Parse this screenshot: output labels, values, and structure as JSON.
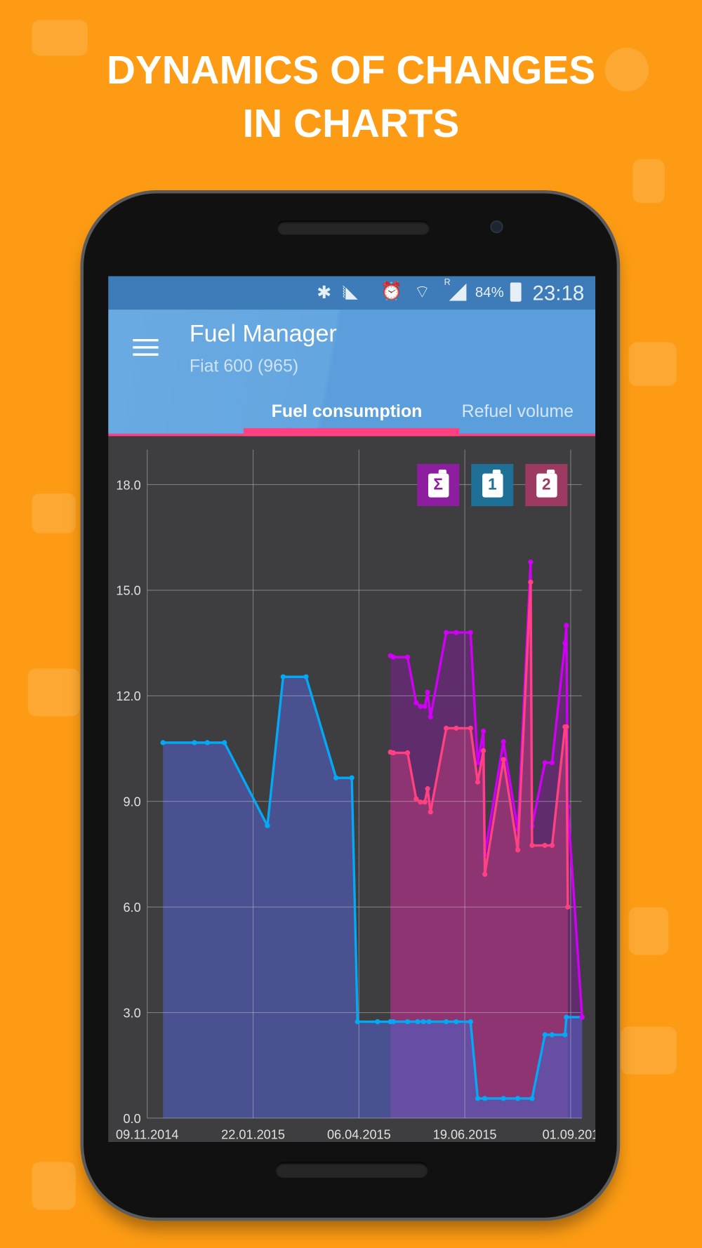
{
  "headline": {
    "line1": "DYNAMICS OF CHANGES",
    "line2": "IN CHARTS"
  },
  "status_bar": {
    "icons": [
      "bluetooth-icon",
      "vibrate-icon",
      "alarm-icon",
      "wifi-icon",
      "roaming-signal-icon",
      "battery-icon"
    ],
    "roaming": "R",
    "battery": "84%",
    "battery_level": 0.84,
    "time": "23:18"
  },
  "app_bar": {
    "title": "Fuel Manager",
    "subtitle": "Fiat 600 (965)",
    "menu_icon": "hamburger-menu-icon"
  },
  "tabs": [
    {
      "label": "Fuel consumption",
      "active": true
    },
    {
      "label": "Refuel volume",
      "active": false
    }
  ],
  "colors": {
    "background": "#fd9c14",
    "status_bar": "#3d7cb8",
    "app_bar": "#5b9edc",
    "accent": "#ff4081",
    "chart_bg": "#3e3d40"
  },
  "legend": [
    {
      "glyph": "Σ",
      "icon": "fuel-can-sum-icon",
      "color": "#8e1ea0"
    },
    {
      "glyph": "1",
      "icon": "fuel-can-1-icon",
      "color": "#1e7096"
    },
    {
      "glyph": "2",
      "icon": "fuel-can-2-icon",
      "color": "#9c3a62"
    }
  ],
  "chart_data": {
    "type": "area",
    "ylim": [
      0,
      18
    ],
    "yticks": [
      "0.0",
      "3.0",
      "6.0",
      "9.0",
      "12.0",
      "15.0",
      "18.0"
    ],
    "xticks": [
      "09.11.2014",
      "22.01.2015",
      "06.04.2015",
      "19.06.2015",
      "01.09.201"
    ],
    "grid": true,
    "series": [
      {
        "key": "1",
        "line_color": "#03a9f4",
        "fill_color": "rgba(81,92,187,0.65)",
        "points": [
          [
            "20.11.2014",
            10.67
          ],
          [
            "12.12.2014",
            10.67
          ],
          [
            "21.12.2014",
            10.67
          ],
          [
            "02.01.2015",
            10.67
          ],
          [
            "01.02.2015",
            8.31
          ],
          [
            "12.02.2015",
            12.54
          ],
          [
            "28.02.2015",
            12.54
          ],
          [
            "21.03.2015",
            9.67
          ],
          [
            "01.04.2015",
            9.67
          ],
          [
            "05.04.2015",
            2.74
          ],
          [
            "19.04.2015",
            2.74
          ],
          [
            "28.04.2015",
            2.74
          ],
          [
            "30.04.2015",
            2.74
          ],
          [
            "10.05.2015",
            2.74
          ],
          [
            "17.05.2015",
            2.74
          ],
          [
            "21.05.2015",
            2.74
          ],
          [
            "25.05.2015",
            2.74
          ],
          [
            "06.06.2015",
            2.74
          ],
          [
            "13.06.2015",
            2.74
          ],
          [
            "23.06.2015",
            2.74
          ],
          [
            "28.06.2015",
            0.56
          ],
          [
            "03.07.2015",
            0.56
          ],
          [
            "16.07.2015",
            0.56
          ],
          [
            "26.07.2015",
            0.56
          ],
          [
            "05.08.2015",
            0.56
          ],
          [
            "14.08.2015",
            2.37
          ],
          [
            "19.08.2015",
            2.37
          ],
          [
            "28.08.2015",
            2.37
          ],
          [
            "29.08.2015",
            2.87
          ],
          [
            "09.09.2015",
            2.87
          ]
        ]
      },
      {
        "key": "Σ",
        "line_color": "#d000f5",
        "fill_color": "#5f2c6c",
        "points": [
          [
            "28.04.2015",
            13.14
          ],
          [
            "30.04.2015",
            13.1
          ],
          [
            "10.05.2015",
            13.1
          ],
          [
            "16.05.2015",
            11.8
          ],
          [
            "19.05.2015",
            11.7
          ],
          [
            "22.05.2015",
            11.7
          ],
          [
            "24.05.2015",
            12.1
          ],
          [
            "26.05.2015",
            11.4
          ],
          [
            "06.06.2015",
            13.8
          ],
          [
            "13.06.2015",
            13.8
          ],
          [
            "23.06.2015",
            13.8
          ],
          [
            "28.06.2015",
            10.1
          ],
          [
            "02.07.2015",
            11.0
          ],
          [
            "03.07.2015",
            7.5
          ],
          [
            "16.07.2015",
            10.7
          ],
          [
            "26.07.2015",
            8.2
          ],
          [
            "04.08.2015",
            15.8
          ],
          [
            "05.08.2015",
            8.3
          ],
          [
            "14.08.2015",
            10.1
          ],
          [
            "19.08.2015",
            10.1
          ],
          [
            "28.08.2015",
            13.5
          ],
          [
            "29.08.2015",
            14.0
          ],
          [
            "30.08.2015",
            8.85
          ],
          [
            "09.09.2015",
            2.87
          ]
        ]
      },
      {
        "key": "2",
        "line_color": "#ff4081",
        "fill_color": "#8e3472",
        "points": [
          [
            "28.04.2015",
            10.4
          ],
          [
            "30.04.2015",
            10.38
          ],
          [
            "10.05.2015",
            10.38
          ],
          [
            "16.05.2015",
            9.07
          ],
          [
            "19.05.2015",
            8.98
          ],
          [
            "22.05.2015",
            8.98
          ],
          [
            "24.05.2015",
            9.36
          ],
          [
            "26.05.2015",
            8.7
          ],
          [
            "06.06.2015",
            11.08
          ],
          [
            "13.06.2015",
            11.08
          ],
          [
            "23.06.2015",
            11.08
          ],
          [
            "28.06.2015",
            9.55
          ],
          [
            "02.07.2015",
            10.44
          ],
          [
            "03.07.2015",
            6.93
          ],
          [
            "16.07.2015",
            10.19
          ],
          [
            "26.07.2015",
            7.62
          ],
          [
            "04.08.2015",
            15.23
          ],
          [
            "05.08.2015",
            7.75
          ],
          [
            "14.08.2015",
            7.75
          ],
          [
            "19.08.2015",
            7.75
          ],
          [
            "28.08.2015",
            11.12
          ],
          [
            "29.08.2015",
            11.12
          ],
          [
            "30.08.2015",
            6.0
          ]
        ]
      }
    ]
  }
}
